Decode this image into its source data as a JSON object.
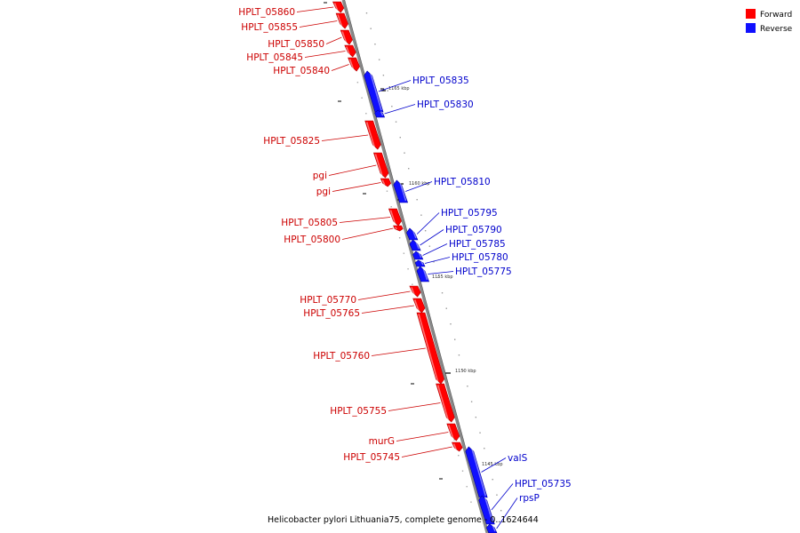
{
  "colors": {
    "forward": "#ff0000",
    "reverse": "#1010ff",
    "backbone": "#888888",
    "forward_label": "#cc0000",
    "reverse_label": "#0000cc"
  },
  "legend": [
    {
      "label": "Forward",
      "strand": "forward"
    },
    {
      "label": "Reverse",
      "strand": "reverse"
    }
  ],
  "caption": "Helicobacter pylori Lithuania75, complete genome - 0..1624644",
  "ticks": [
    "1165 kbp",
    "1160 kbp",
    "1155 kbp",
    "1150 kbp",
    "1145 kbp"
  ],
  "genes": [
    {
      "label": "HPLT_05860",
      "strand": "forward"
    },
    {
      "label": "HPLT_05855",
      "strand": "forward"
    },
    {
      "label": "HPLT_05850",
      "strand": "forward"
    },
    {
      "label": "HPLT_05845",
      "strand": "forward"
    },
    {
      "label": "HPLT_05840",
      "strand": "forward"
    },
    {
      "label": "HPLT_05835",
      "strand": "reverse"
    },
    {
      "label": "HPLT_05830",
      "strand": "reverse"
    },
    {
      "label": "HPLT_05825",
      "strand": "forward"
    },
    {
      "label": "pgi",
      "strand": "forward"
    },
    {
      "label": "pgi",
      "strand": "forward"
    },
    {
      "label": "HPLT_05810",
      "strand": "reverse"
    },
    {
      "label": "HPLT_05805",
      "strand": "forward"
    },
    {
      "label": "HPLT_05800",
      "strand": "forward"
    },
    {
      "label": "HPLT_05795",
      "strand": "reverse"
    },
    {
      "label": "HPLT_05790",
      "strand": "reverse"
    },
    {
      "label": "HPLT_05785",
      "strand": "reverse"
    },
    {
      "label": "HPLT_05780",
      "strand": "reverse"
    },
    {
      "label": "HPLT_05775",
      "strand": "reverse"
    },
    {
      "label": "HPLT_05770",
      "strand": "forward"
    },
    {
      "label": "HPLT_05765",
      "strand": "forward"
    },
    {
      "label": "HPLT_05760",
      "strand": "forward"
    },
    {
      "label": "HPLT_05755",
      "strand": "forward"
    },
    {
      "label": "murG",
      "strand": "forward"
    },
    {
      "label": "HPLT_05745",
      "strand": "forward"
    },
    {
      "label": "valS",
      "strand": "reverse"
    },
    {
      "label": "HPLT_05735",
      "strand": "reverse"
    },
    {
      "label": "rpsP",
      "strand": "reverse"
    }
  ]
}
